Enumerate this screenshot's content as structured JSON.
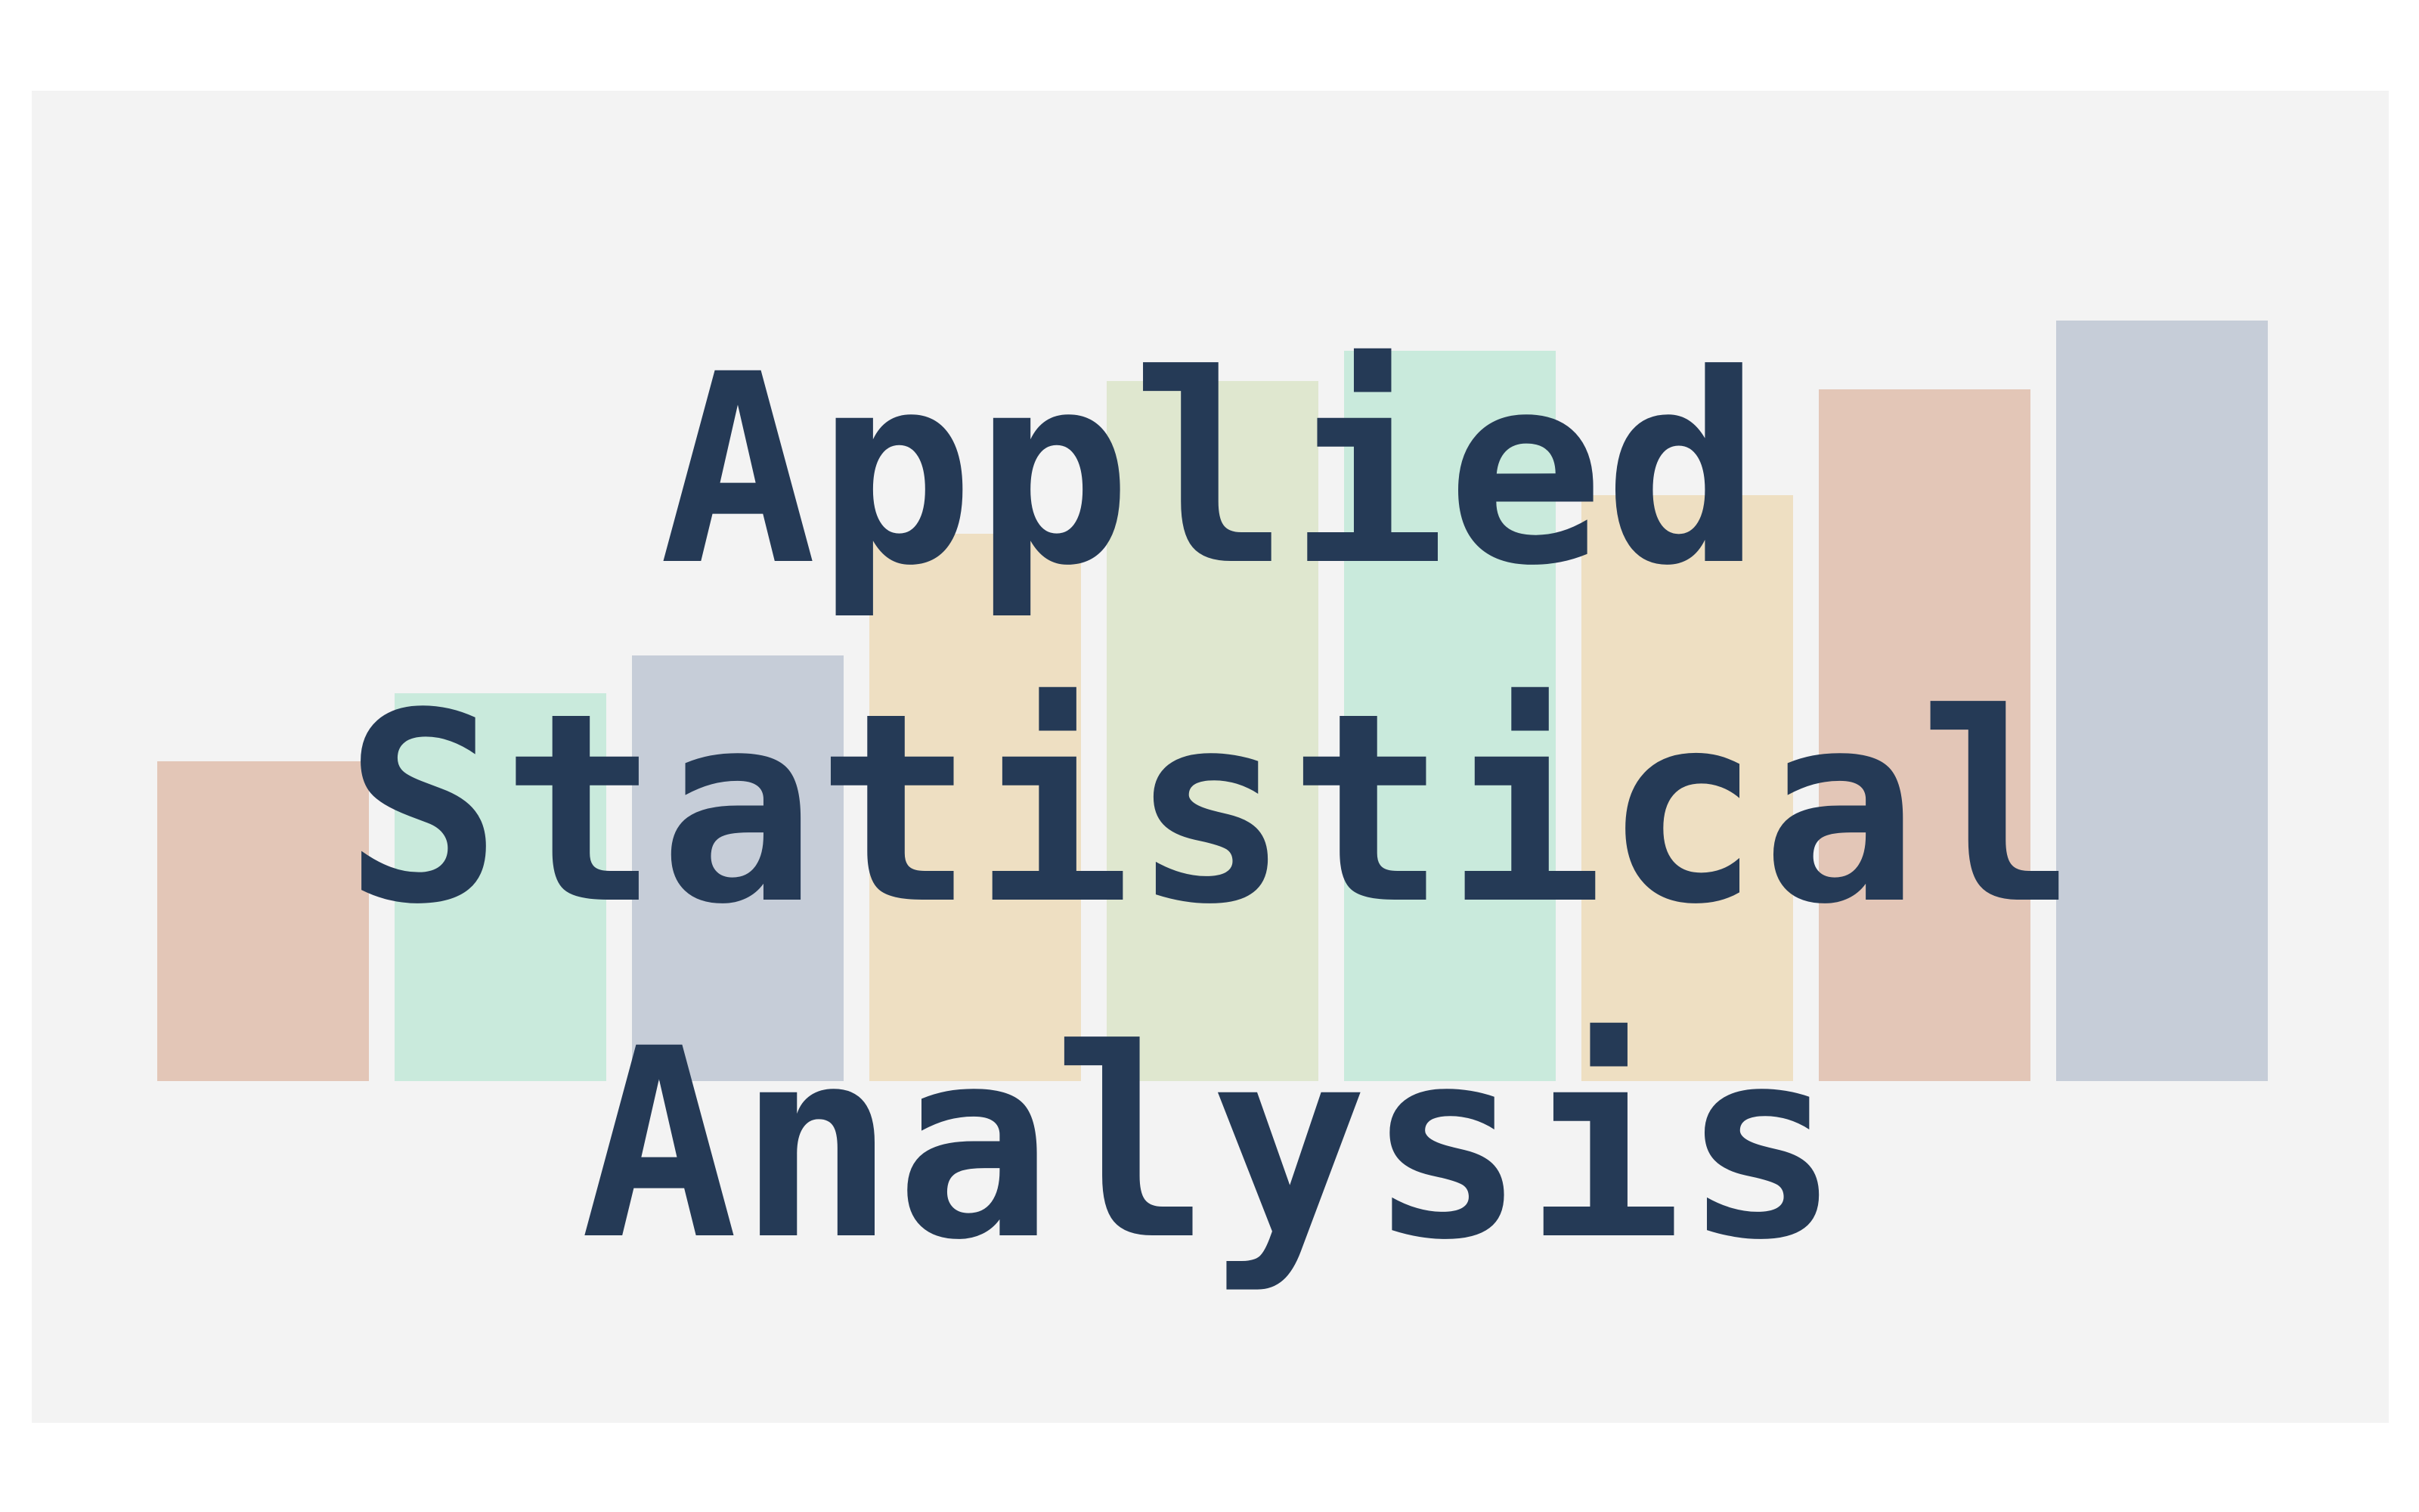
{
  "cover": {
    "title_lines": [
      "Applied",
      "Statistical",
      "Analysis"
    ],
    "title_color": "#253a56",
    "background_color": "#f3f3f3"
  },
  "decorative_bars": [
    {
      "relative_height": 0.42,
      "color": "#e3c6b7"
    },
    {
      "relative_height": 0.51,
      "color": "#c9eadc"
    },
    {
      "relative_height": 0.56,
      "color": "#c6cdd8"
    },
    {
      "relative_height": 0.72,
      "color": "#eedfc2"
    },
    {
      "relative_height": 0.92,
      "color": "#dfe7cf"
    },
    {
      "relative_height": 0.96,
      "color": "#c9eadc"
    },
    {
      "relative_height": 0.77,
      "color": "#eedfc2"
    },
    {
      "relative_height": 0.91,
      "color": "#e3c6b7"
    },
    {
      "relative_height": 1.0,
      "color": "#c6cdd8"
    }
  ]
}
